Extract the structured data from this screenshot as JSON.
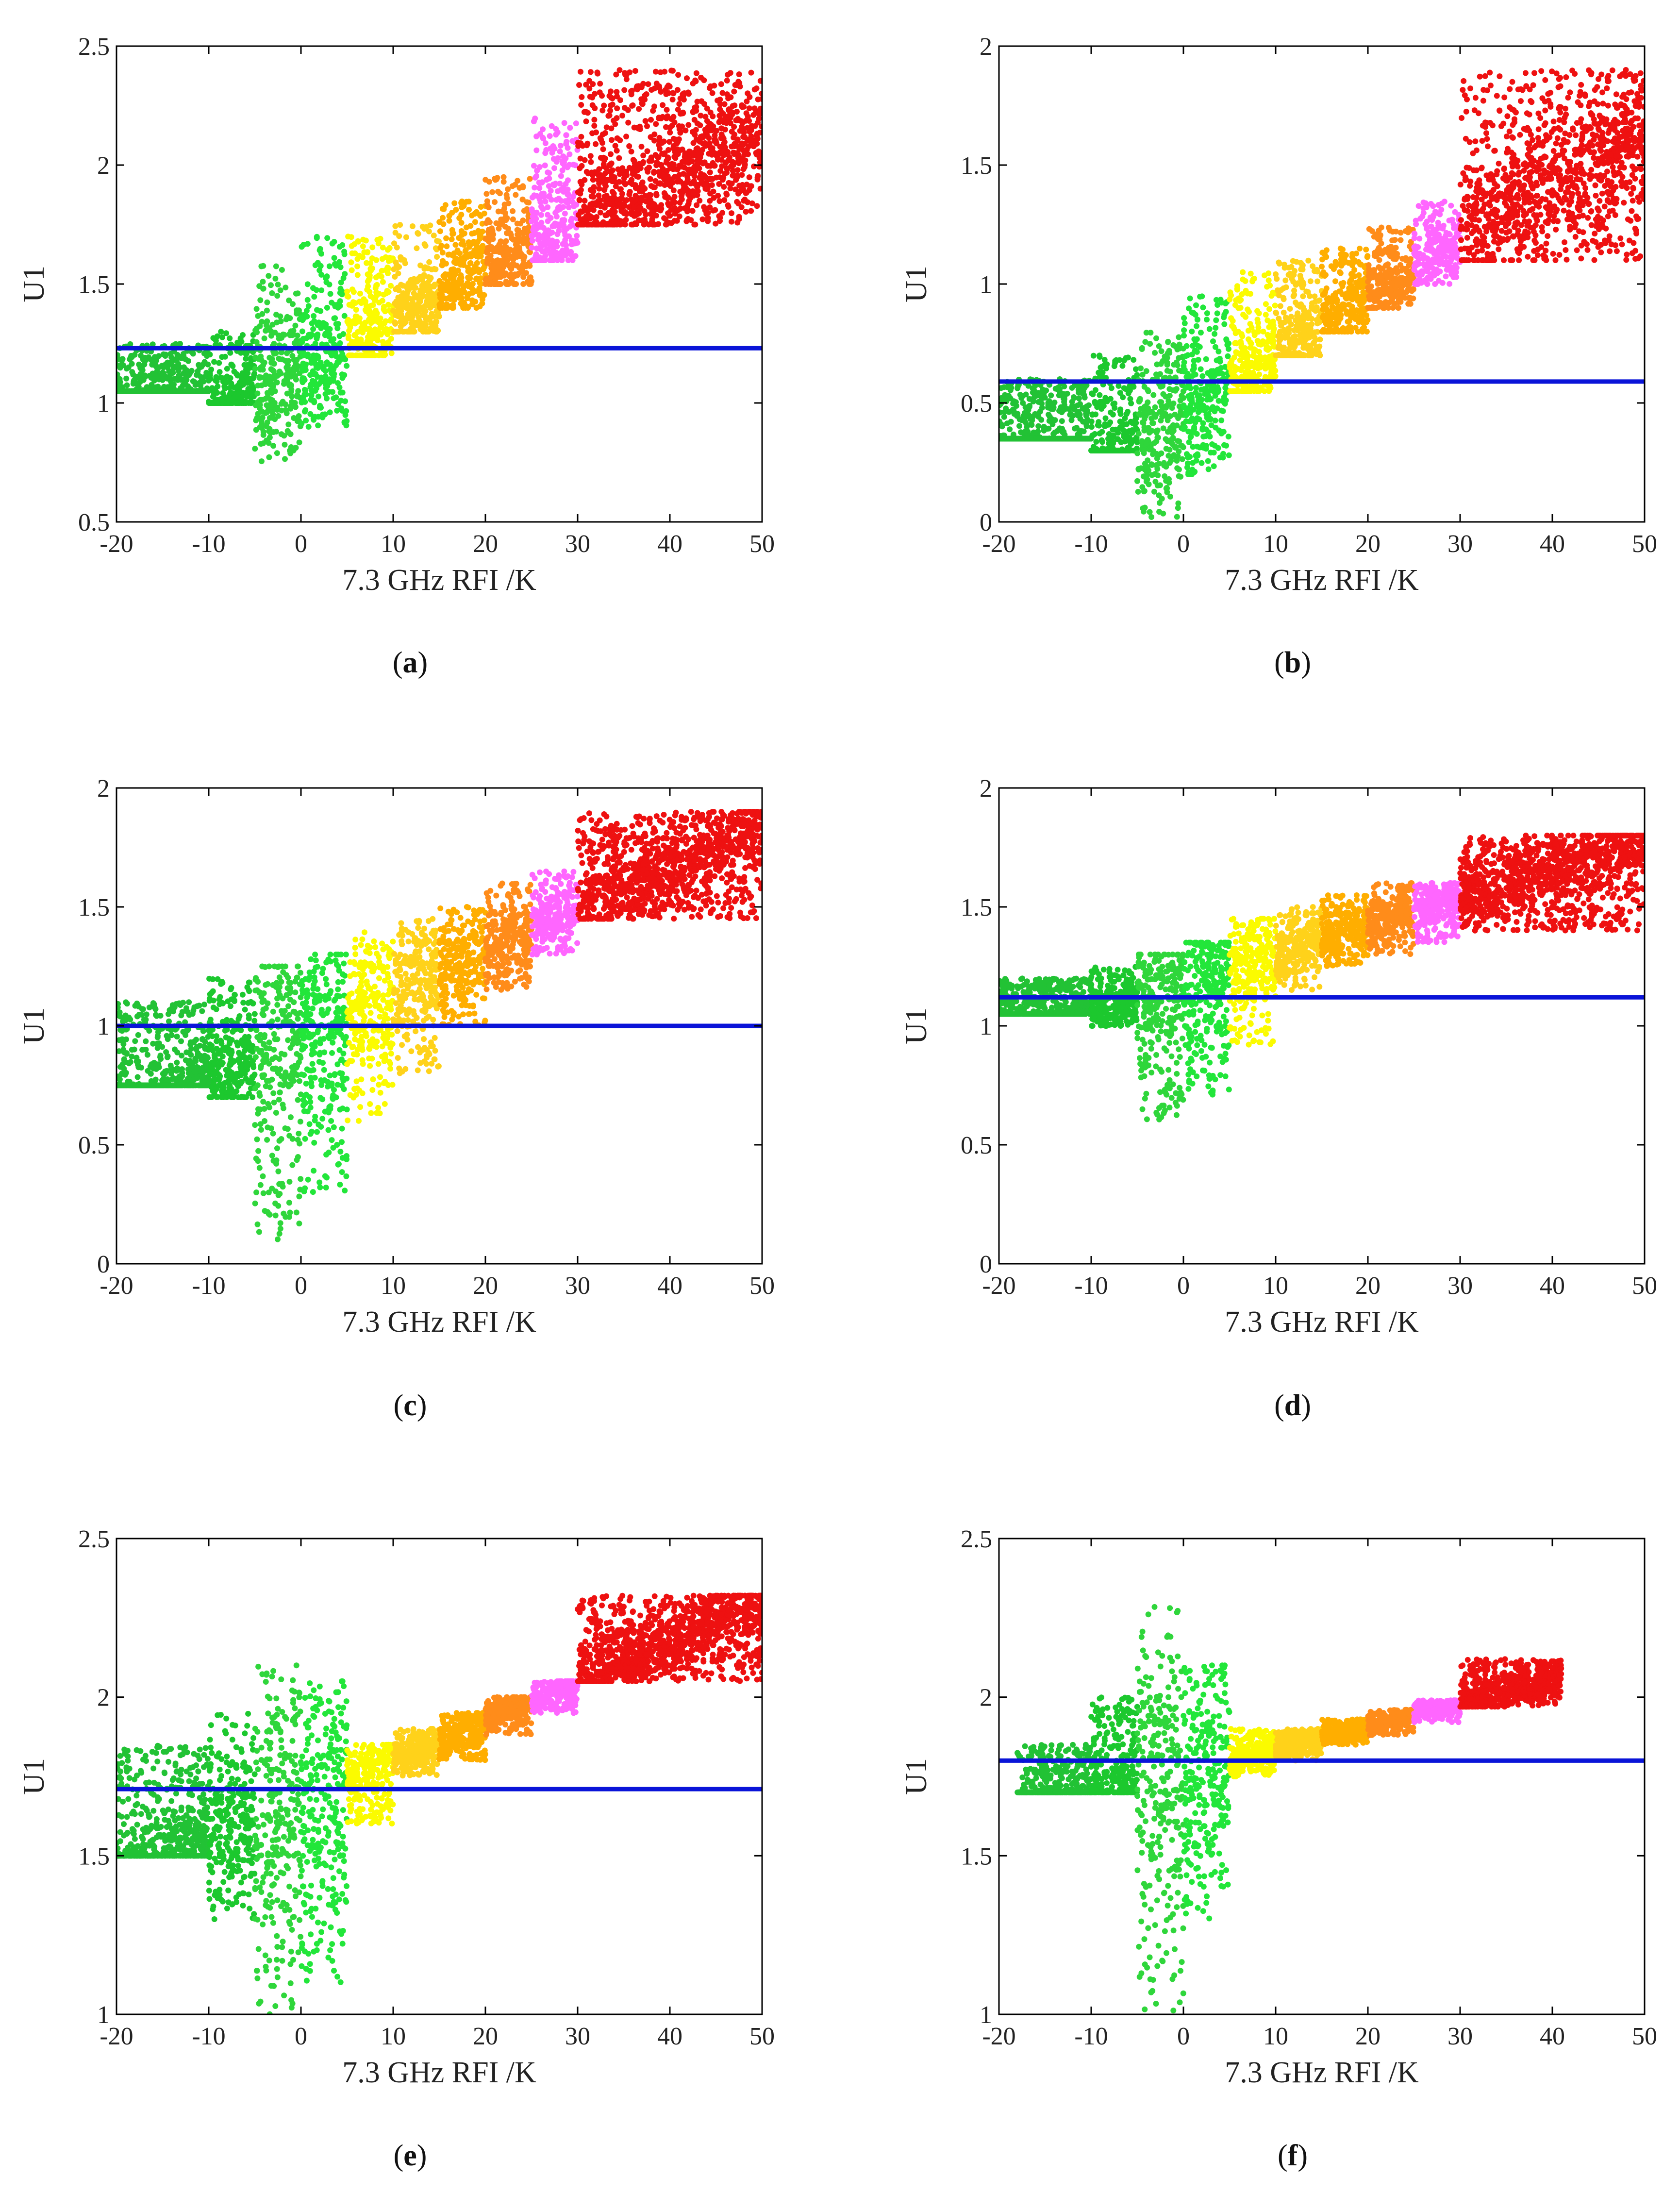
{
  "chart_data": [
    {
      "type": "scatter",
      "panel": "a",
      "caption": {
        "open": "(",
        "letter": "a",
        "close": ")"
      },
      "xlabel": "7.3 GHz RFI /K",
      "ylabel": "U1",
      "xlim": [
        -20,
        50
      ],
      "ylim": [
        0.5,
        2.5
      ],
      "xticks": [
        -20,
        -10,
        0,
        10,
        20,
        30,
        40,
        50
      ],
      "xtick_labels": [
        "-20",
        "-10",
        "0",
        "10",
        "20",
        "30",
        "40",
        "50"
      ],
      "yticks": [
        0.5,
        1,
        1.5,
        2,
        2.5
      ],
      "ytick_labels": [
        "0.5",
        "1",
        "1.5",
        "2",
        "2.5"
      ],
      "threshold": 1.23,
      "bands": [
        {
          "range": [
            -20,
            -10
          ],
          "y": [
            1.05,
            1.25
          ],
          "color": "#22c235"
        },
        {
          "range": [
            -10,
            -5
          ],
          "y": [
            1.0,
            1.3
          ],
          "color": "#1cc82e"
        },
        {
          "range": [
            -5,
            0
          ],
          "y": [
            0.75,
            1.6
          ],
          "color": "#2fd63b"
        },
        {
          "range": [
            0,
            5
          ],
          "y": [
            0.9,
            1.7
          ],
          "color": "#22e63a"
        },
        {
          "range": [
            5,
            10
          ],
          "y": [
            1.2,
            1.7
          ],
          "color": "#fbfb00"
        },
        {
          "range": [
            10,
            15
          ],
          "y": [
            1.3,
            1.75
          ],
          "color": "#ffd21a"
        },
        {
          "range": [
            15,
            20
          ],
          "y": [
            1.4,
            1.85
          ],
          "color": "#ffae00"
        },
        {
          "range": [
            20,
            25
          ],
          "y": [
            1.5,
            1.95
          ],
          "color": "#ff8c1a"
        },
        {
          "range": [
            25,
            30
          ],
          "y": [
            1.6,
            2.2
          ],
          "color": "#ff66ff"
        },
        {
          "range": [
            30,
            50
          ],
          "y": [
            1.75,
            2.4
          ],
          "color": "#ee1111"
        }
      ],
      "trend": {
        "slope": 0.02,
        "intercept": 1.15
      }
    },
    {
      "type": "scatter",
      "panel": "b",
      "caption": {
        "open": "(",
        "letter": "b",
        "close": ")"
      },
      "xlabel": "7.3 GHz RFI /K",
      "ylabel": "U1",
      "xlim": [
        -20,
        50
      ],
      "ylim": [
        0,
        2
      ],
      "xticks": [
        -20,
        -10,
        0,
        10,
        20,
        30,
        40,
        50
      ],
      "xtick_labels": [
        "-20",
        "-10",
        "0",
        "10",
        "20",
        "30",
        "40",
        "50"
      ],
      "yticks": [
        0,
        0.5,
        1,
        1.5,
        2
      ],
      "ytick_labels": [
        "0",
        "0.5",
        "1",
        "1.5",
        "2"
      ],
      "threshold": 0.59,
      "bands": [
        {
          "range": [
            -20,
            -10
          ],
          "y": [
            0.35,
            0.6
          ],
          "color": "#22c235"
        },
        {
          "range": [
            -10,
            -5
          ],
          "y": [
            0.3,
            0.7
          ],
          "color": "#1cc82e"
        },
        {
          "range": [
            -5,
            0
          ],
          "y": [
            0.0,
            0.8
          ],
          "color": "#2fd63b"
        },
        {
          "range": [
            0,
            5
          ],
          "y": [
            0.2,
            0.95
          ],
          "color": "#22e63a"
        },
        {
          "range": [
            5,
            10
          ],
          "y": [
            0.55,
            1.05
          ],
          "color": "#fbfb00"
        },
        {
          "range": [
            10,
            15
          ],
          "y": [
            0.7,
            1.1
          ],
          "color": "#ffd21a"
        },
        {
          "range": [
            15,
            20
          ],
          "y": [
            0.8,
            1.15
          ],
          "color": "#ffae00"
        },
        {
          "range": [
            20,
            25
          ],
          "y": [
            0.9,
            1.25
          ],
          "color": "#ff8c1a"
        },
        {
          "range": [
            25,
            30
          ],
          "y": [
            1.0,
            1.35
          ],
          "color": "#ff66ff"
        },
        {
          "range": [
            30,
            50
          ],
          "y": [
            1.1,
            1.9
          ],
          "color": "#ee1111"
        }
      ],
      "trend": {
        "slope": 0.024,
        "intercept": 0.45
      }
    },
    {
      "type": "scatter",
      "panel": "c",
      "caption": {
        "open": "(",
        "letter": "c",
        "close": ")"
      },
      "xlabel": "7.3 GHz RFI /K",
      "ylabel": "U1",
      "xlim": [
        -20,
        50
      ],
      "ylim": [
        0,
        2
      ],
      "xticks": [
        -20,
        -10,
        0,
        10,
        20,
        30,
        40,
        50
      ],
      "xtick_labels": [
        "-20",
        "-10",
        "0",
        "10",
        "20",
        "30",
        "40",
        "50"
      ],
      "yticks": [
        0,
        0.5,
        1,
        1.5,
        2
      ],
      "ytick_labels": [
        "0",
        "0.5",
        "1",
        "1.5",
        "2"
      ],
      "threshold": 1.0,
      "bands": [
        {
          "range": [
            -20,
            -10
          ],
          "y": [
            0.75,
            1.1
          ],
          "color": "#22c235"
        },
        {
          "range": [
            -10,
            -5
          ],
          "y": [
            0.7,
            1.2
          ],
          "color": "#1cc82e"
        },
        {
          "range": [
            -5,
            0
          ],
          "y": [
            0.1,
            1.25
          ],
          "color": "#2fd63b"
        },
        {
          "range": [
            0,
            5
          ],
          "y": [
            0.3,
            1.3
          ],
          "color": "#22e63a"
        },
        {
          "range": [
            5,
            10
          ],
          "y": [
            0.6,
            1.4
          ],
          "color": "#fbfb00"
        },
        {
          "range": [
            10,
            15
          ],
          "y": [
            0.8,
            1.45
          ],
          "color": "#ffd21a"
        },
        {
          "range": [
            15,
            20
          ],
          "y": [
            1.0,
            1.5
          ],
          "color": "#ffae00"
        },
        {
          "range": [
            20,
            25
          ],
          "y": [
            1.15,
            1.6
          ],
          "color": "#ff8c1a"
        },
        {
          "range": [
            25,
            30
          ],
          "y": [
            1.3,
            1.65
          ],
          "color": "#ff66ff"
        },
        {
          "range": [
            30,
            50
          ],
          "y": [
            1.45,
            1.9
          ],
          "color": "#ee1111"
        }
      ],
      "trend": {
        "slope": 0.018,
        "intercept": 0.95
      }
    },
    {
      "type": "scatter",
      "panel": "d",
      "caption": {
        "open": "(",
        "letter": "d",
        "close": ")"
      },
      "xlabel": "7.3 GHz RFI /K",
      "ylabel": "U1",
      "xlim": [
        -20,
        50
      ],
      "ylim": [
        0,
        2
      ],
      "xticks": [
        -20,
        -10,
        0,
        10,
        20,
        30,
        40,
        50
      ],
      "xtick_labels": [
        "-20",
        "-10",
        "0",
        "10",
        "20",
        "30",
        "40",
        "50"
      ],
      "yticks": [
        0,
        0.5,
        1,
        1.5,
        2
      ],
      "ytick_labels": [
        "0",
        "0.5",
        "1",
        "1.5",
        "2"
      ],
      "threshold": 1.12,
      "bands": [
        {
          "range": [
            -20,
            -10
          ],
          "y": [
            1.05,
            1.2
          ],
          "color": "#22c235"
        },
        {
          "range": [
            -10,
            -5
          ],
          "y": [
            1.0,
            1.25
          ],
          "color": "#1cc82e"
        },
        {
          "range": [
            -5,
            0
          ],
          "y": [
            0.6,
            1.3
          ],
          "color": "#2fd63b"
        },
        {
          "range": [
            0,
            5
          ],
          "y": [
            0.7,
            1.35
          ],
          "color": "#22e63a"
        },
        {
          "range": [
            5,
            10
          ],
          "y": [
            0.9,
            1.45
          ],
          "color": "#fbfb00"
        },
        {
          "range": [
            10,
            15
          ],
          "y": [
            1.15,
            1.5
          ],
          "color": "#ffd21a"
        },
        {
          "range": [
            15,
            20
          ],
          "y": [
            1.25,
            1.55
          ],
          "color": "#ffae00"
        },
        {
          "range": [
            20,
            25
          ],
          "y": [
            1.3,
            1.6
          ],
          "color": "#ff8c1a"
        },
        {
          "range": [
            25,
            30
          ],
          "y": [
            1.35,
            1.6
          ],
          "color": "#ff66ff"
        },
        {
          "range": [
            30,
            50
          ],
          "y": [
            1.4,
            1.8
          ],
          "color": "#ee1111"
        }
      ],
      "trend": {
        "slope": 0.012,
        "intercept": 1.18
      }
    },
    {
      "type": "scatter",
      "panel": "e",
      "caption": {
        "open": "(",
        "letter": "e",
        "close": ")"
      },
      "xlabel": "7.3 GHz RFI /K",
      "ylabel": "U1",
      "xlim": [
        -20,
        50
      ],
      "ylim": [
        1,
        2.5
      ],
      "xticks": [
        -20,
        -10,
        0,
        10,
        20,
        30,
        40,
        50
      ],
      "xtick_labels": [
        "-20",
        "-10",
        "0",
        "10",
        "20",
        "30",
        "40",
        "50"
      ],
      "yticks": [
        1,
        1.5,
        2,
        2.5
      ],
      "ytick_labels": [
        "1",
        "1.5",
        "2",
        "2.5"
      ],
      "threshold": 1.71,
      "bands": [
        {
          "range": [
            -20,
            -10
          ],
          "y": [
            1.5,
            1.85
          ],
          "color": "#22c235"
        },
        {
          "range": [
            -10,
            -5
          ],
          "y": [
            1.3,
            1.95
          ],
          "color": "#1cc82e"
        },
        {
          "range": [
            -5,
            0
          ],
          "y": [
            1.0,
            2.1
          ],
          "color": "#2fd63b"
        },
        {
          "range": [
            0,
            5
          ],
          "y": [
            1.1,
            2.05
          ],
          "color": "#22e63a"
        },
        {
          "range": [
            5,
            10
          ],
          "y": [
            1.6,
            1.85
          ],
          "color": "#fbfb00"
        },
        {
          "range": [
            10,
            15
          ],
          "y": [
            1.75,
            1.9
          ],
          "color": "#ffd21a"
        },
        {
          "range": [
            15,
            20
          ],
          "y": [
            1.8,
            1.95
          ],
          "color": "#ffae00"
        },
        {
          "range": [
            20,
            25
          ],
          "y": [
            1.88,
            2.0
          ],
          "color": "#ff8c1a"
        },
        {
          "range": [
            25,
            30
          ],
          "y": [
            1.95,
            2.05
          ],
          "color": "#ff66ff"
        },
        {
          "range": [
            30,
            50
          ],
          "y": [
            2.05,
            2.32
          ],
          "color": "#ee1111"
        }
      ],
      "trend": {
        "slope": 0.0125,
        "intercept": 1.68
      }
    },
    {
      "type": "scatter",
      "panel": "f",
      "caption": {
        "open": "(",
        "letter": "f",
        "close": ")"
      },
      "xlabel": "7.3 GHz RFI /K",
      "ylabel": "U1",
      "xlim": [
        -20,
        50
      ],
      "ylim": [
        1,
        2.5
      ],
      "xticks": [
        -20,
        -10,
        0,
        10,
        20,
        30,
        40,
        50
      ],
      "xtick_labels": [
        "-20",
        "-10",
        "0",
        "10",
        "20",
        "30",
        "40",
        "50"
      ],
      "yticks": [
        1,
        1.5,
        2,
        2.5
      ],
      "ytick_labels": [
        "1",
        "1.5",
        "2",
        "2.5"
      ],
      "threshold": 1.8,
      "bands": [
        {
          "range": [
            -18,
            -10
          ],
          "y": [
            1.7,
            1.85
          ],
          "color": "#22c235"
        },
        {
          "range": [
            -10,
            -5
          ],
          "y": [
            1.7,
            2.0
          ],
          "color": "#1cc82e"
        },
        {
          "range": [
            -5,
            0
          ],
          "y": [
            1.0,
            2.3
          ],
          "color": "#2fd63b"
        },
        {
          "range": [
            0,
            5
          ],
          "y": [
            1.3,
            2.1
          ],
          "color": "#22e63a"
        },
        {
          "range": [
            5,
            10
          ],
          "y": [
            1.75,
            1.9
          ],
          "color": "#fbfb00"
        },
        {
          "range": [
            10,
            15
          ],
          "y": [
            1.8,
            1.9
          ],
          "color": "#ffd21a"
        },
        {
          "range": [
            15,
            20
          ],
          "y": [
            1.85,
            1.93
          ],
          "color": "#ffae00"
        },
        {
          "range": [
            20,
            25
          ],
          "y": [
            1.88,
            1.96
          ],
          "color": "#ff8c1a"
        },
        {
          "range": [
            25,
            30
          ],
          "y": [
            1.92,
            1.99
          ],
          "color": "#ff66ff"
        },
        {
          "range": [
            30,
            41
          ],
          "y": [
            1.97,
            2.12
          ],
          "color": "#ee1111"
        }
      ],
      "trend": {
        "slope": 0.0075,
        "intercept": 1.76
      }
    }
  ]
}
